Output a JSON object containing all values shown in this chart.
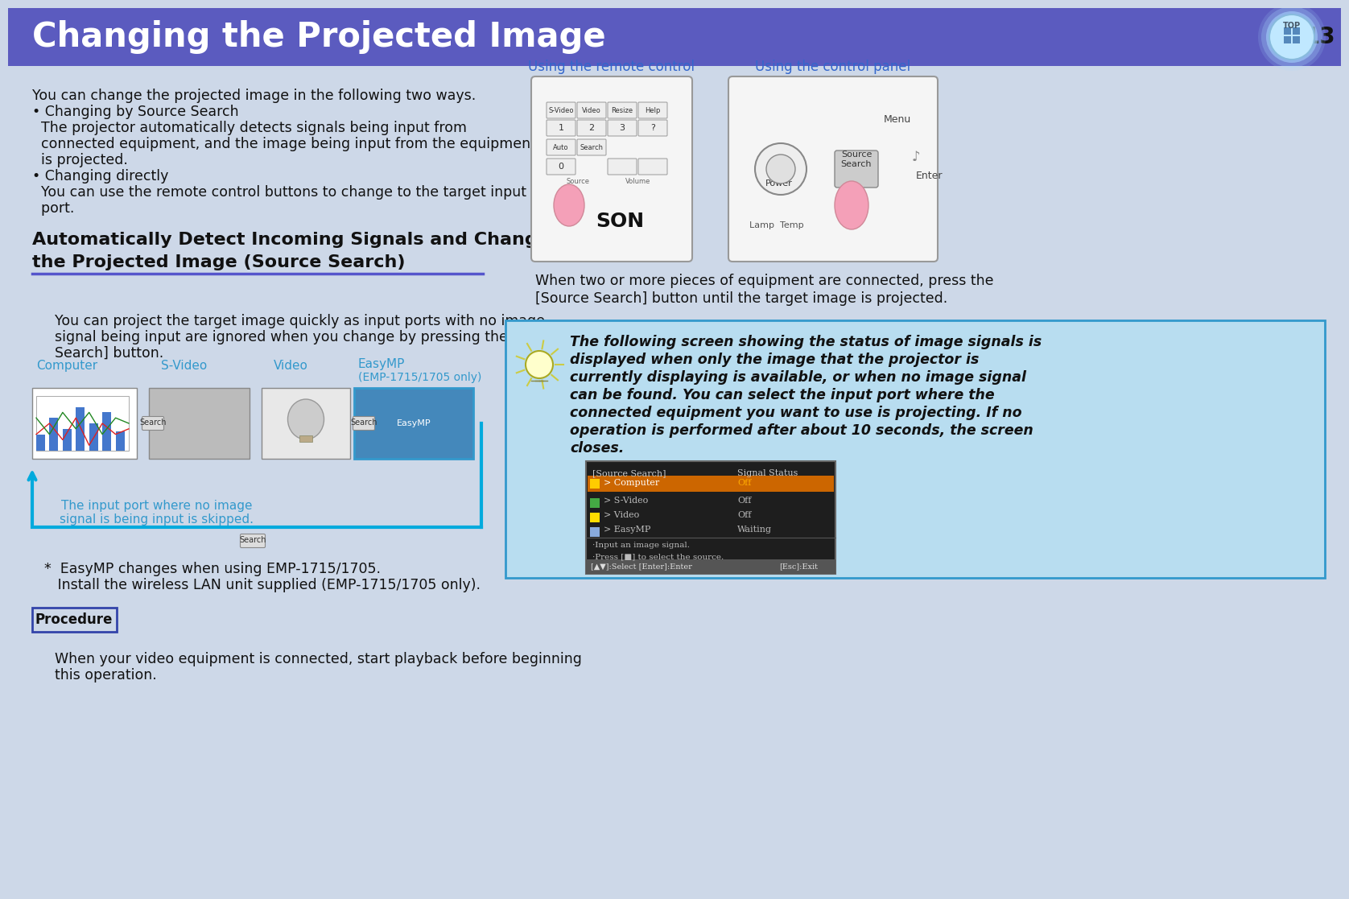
{
  "header_bg": "#5b5bbf",
  "header_text": "Changing the Projected Image",
  "header_text_color": "#ffffff",
  "page_num": "13",
  "body_bg": "#cdd8e8",
  "note_box_bg": "#b8ddf0",
  "note_box_border": "#3399cc",
  "procedure_box_border": "#3344aa",
  "blue_link_color": "#3366cc",
  "arrow_color": "#00aadd",
  "skipped_text_color": "#3399cc",
  "label_color": "#3399cc",
  "main_text_lines": [
    "You can change the projected image in the following two ways.",
    "• Changing by Source Search",
    "  The projector automatically detects signals being input from",
    "  connected equipment, and the image being input from the equipment",
    "  is projected.",
    "• Changing directly",
    "  You can use the remote control buttons to change to the target input",
    "  port."
  ],
  "section_title_line1": "Automatically Detect Incoming Signals and Change",
  "section_title_line2": "the Projected Image (Source Search)",
  "indented_text_lines": [
    "You can project the target image quickly as input ports with no image",
    "signal being input are ignored when you change by pressing the [Source",
    "Search] button."
  ],
  "flow_labels": [
    "Computer",
    "S-Video",
    "Video",
    "EasyMP\n(EMP-1715/1705 only)"
  ],
  "skipped_label": "The input port where no image\nsignal is being input is skipped.",
  "footnote_lines": [
    "*  EasyMP changes when using EMP-1715/1705.",
    "   Install the wireless LAN unit supplied (EMP-1715/1705 only)."
  ],
  "procedure_label": "Procedure",
  "procedure_text_lines": [
    "When your video equipment is connected, start playback before beginning",
    "this operation."
  ],
  "right_label1": "Using the remote control",
  "right_label2": "Using the control panel",
  "right_text_lines": [
    "When two or more pieces of equipment are connected, press the",
    "[Source Search] button until the target image is projected."
  ],
  "note_italic_text": [
    "The following screen showing the status of image signals is",
    "displayed when only the image that the projector is",
    "currently displaying is available, or when no image signal",
    "can be found. You can select the input port where the",
    "connected equipment you want to use is projecting. If no",
    "operation is performed after about 10 seconds, the screen",
    "closes."
  ]
}
